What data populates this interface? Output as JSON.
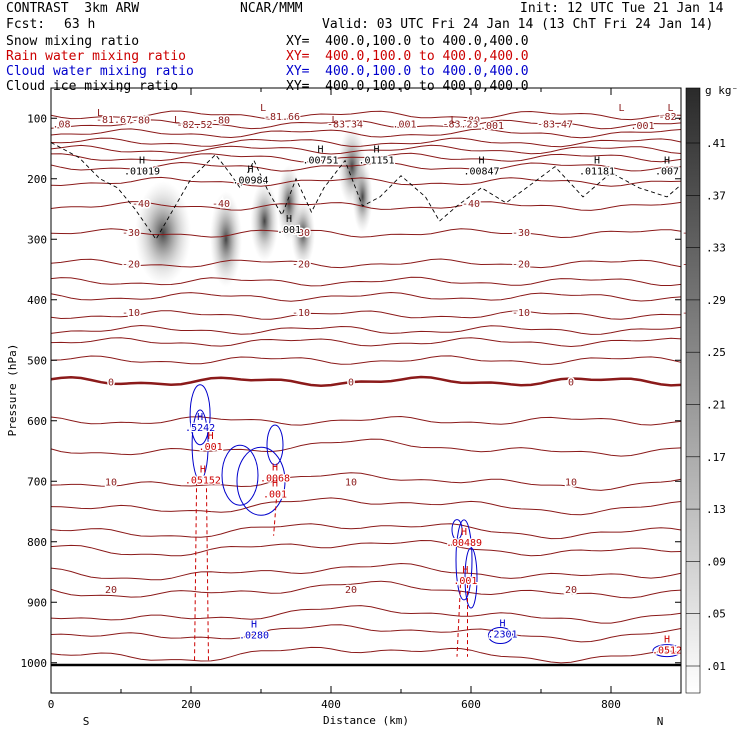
{
  "header": {
    "model": "CONTRAST  3km ARW",
    "org": "NCAR/MMM",
    "init": "Init: 12 UTC Tue 21 Jan 14",
    "fcst_label": "Fcst:",
    "fcst_value": "63 h",
    "valid": "Valid: 03 UTC Fri 24 Jan 14 (13 ChT Fri 24 Jan 14)",
    "fields": [
      {
        "name": "Snow mixing ratio",
        "xy": "XY=  400.0,100.0 to 400.0,400.0",
        "color": "#000000"
      },
      {
        "name": "Rain water mixing ratio",
        "xy": "XY=  400.0,100.0 to 400.0,400.0",
        "color": "#cc0000"
      },
      {
        "name": "Cloud water mixing ratio",
        "xy": "XY=  400.0,100.0 to 400.0,400.0",
        "color": "#0000cc"
      },
      {
        "name": "Cloud ice mixing ratio",
        "xy": "XY=  400.0,100.0 to 400.0,400.0",
        "color": "#000000"
      }
    ]
  },
  "chart_data": {
    "type": "heatmap",
    "xlabel": "Distance (km)",
    "ylabel": "Pressure (hPa)",
    "xlim": [
      0,
      900
    ],
    "ylim": [
      1050,
      50
    ],
    "x_ticks": [
      0,
      200,
      400,
      600,
      800
    ],
    "y_ticks": [
      100,
      200,
      300,
      400,
      500,
      600,
      700,
      800,
      900,
      1000
    ],
    "orientation_left": "S",
    "orientation_right": "N",
    "colorbar": {
      "unit": "g kg⁻¹",
      "levels": [
        ".41",
        ".37",
        ".33",
        ".29",
        ".25",
        ".21",
        ".17",
        ".13",
        ".09",
        ".05",
        ".01"
      ]
    },
    "temperature_isotherms": [
      {
        "label": "-80",
        "p": 102
      },
      {
        "label": "-40",
        "p": 240
      },
      {
        "label": "-30",
        "p": 288
      },
      {
        "label": "-20",
        "p": 340
      },
      {
        "label": "-10",
        "p": 420
      },
      {
        "label": "0",
        "p": 535
      },
      {
        "label": "10",
        "p": 700
      },
      {
        "label": "20",
        "p": 878
      }
    ],
    "snow_maxima": [
      {
        "label": ".01019",
        "x": 130,
        "p": 193
      },
      {
        "label": ".00984",
        "x": 285,
        "p": 208
      },
      {
        "label": ".00751",
        "x": 385,
        "p": 175
      },
      {
        "label": ".01151",
        "x": 465,
        "p": 175
      },
      {
        "label": ".00847",
        "x": 615,
        "p": 193
      },
      {
        "label": ".01181",
        "x": 780,
        "p": 193
      },
      {
        "label": ".007",
        "x": 880,
        "p": 193
      },
      {
        "label": ".001",
        "x": 340,
        "p": 290
      }
    ],
    "cloud_ice_labels": [
      {
        "label": ".08",
        "x": 15,
        "p": 115
      },
      {
        "label": "-81.67",
        "x": 90,
        "p": 108
      },
      {
        "label": "-82.52",
        "x": 205,
        "p": 116
      },
      {
        "label": "-81.66",
        "x": 330,
        "p": 103
      },
      {
        "label": "-83.34",
        "x": 420,
        "p": 115
      },
      {
        "label": ".001",
        "x": 505,
        "p": 115
      },
      {
        "label": "-83.23",
        "x": 585,
        "p": 115
      },
      {
        "label": ".001",
        "x": 630,
        "p": 118
      },
      {
        "label": "-83.47",
        "x": 720,
        "p": 115
      },
      {
        "label": ".001",
        "x": 845,
        "p": 118
      },
      {
        "label": "-82.",
        "x": 885,
        "p": 103
      }
    ],
    "cloud_ice_lows": [
      {
        "label": "L",
        "x": 70,
        "p": 96
      },
      {
        "label": "L",
        "x": 180,
        "p": 108
      },
      {
        "label": "L",
        "x": 303,
        "p": 88
      },
      {
        "label": "L",
        "x": 405,
        "p": 108
      },
      {
        "label": "L",
        "x": 575,
        "p": 108
      },
      {
        "label": "L",
        "x": 815,
        "p": 88
      },
      {
        "label": "L",
        "x": 885,
        "p": 88
      }
    ],
    "cloud_water_maxima": [
      {
        "label": ".5242",
        "x": 213,
        "p": 617
      },
      {
        "label": ".0280",
        "x": 290,
        "p": 960
      },
      {
        "label": ".2301",
        "x": 645,
        "p": 958
      }
    ],
    "rain_maxima": [
      {
        "label": ".05152",
        "x": 217,
        "p": 704
      },
      {
        "label": ".001",
        "x": 228,
        "p": 648
      },
      {
        "label": ".0068",
        "x": 320,
        "p": 700
      },
      {
        "label": ".001",
        "x": 320,
        "p": 727
      },
      {
        "label": ".00489",
        "x": 590,
        "p": 807
      },
      {
        "label": ".001",
        "x": 592,
        "p": 870
      },
      {
        "label": ".0512",
        "x": 880,
        "p": 985
      }
    ],
    "surface_pressure": 1000
  }
}
